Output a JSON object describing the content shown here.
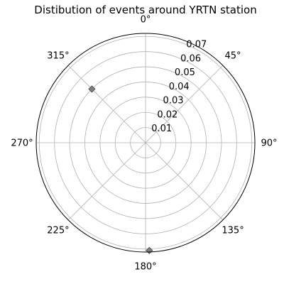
{
  "chart_data": {
    "type": "scatter",
    "projection": "polar",
    "title": "Distibution of events around YRTN station",
    "theta_zero_location": "N",
    "theta_direction": "clockwise",
    "theta_ticks": [
      0,
      45,
      90,
      135,
      180,
      225,
      270,
      315
    ],
    "theta_tick_labels": [
      "0°",
      "45°",
      "90°",
      "135°",
      "180°",
      "225°",
      "270°",
      "315°"
    ],
    "r_ticks": [
      0.01,
      0.02,
      0.03,
      0.04,
      0.05,
      0.06,
      0.07
    ],
    "r_tick_labels": [
      "0.01",
      "0.02",
      "0.03",
      "0.04",
      "0.05",
      "0.06",
      "0.07"
    ],
    "rlim": [
      0,
      0.072
    ],
    "grid": true,
    "marker": "diamond",
    "marker_color": "#808080",
    "marker_edge_color": "#404040",
    "points": [
      {
        "theta": 315,
        "r": 0.05
      },
      {
        "theta": 178,
        "r": 0.071
      }
    ]
  }
}
